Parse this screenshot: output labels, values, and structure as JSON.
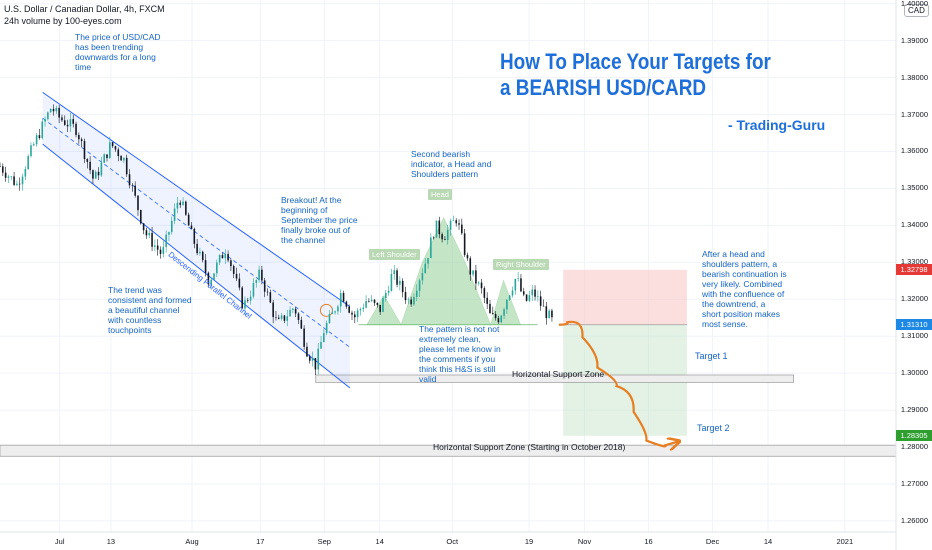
{
  "header": {
    "symbol_line": "U.S. Dollar / Canadian Dollar, 4h, FXCM",
    "volume_line": "24h volume by 100-eyes.com",
    "currency_badge": "CAD"
  },
  "title": {
    "line1": "How To Place Your Targets for",
    "line2": "a BEARISH USD/CARD",
    "author": "- Trading-Guru"
  },
  "annotations": {
    "trend_intro": [
      "The price of USD/CAD",
      "has been trending",
      "downwards for a long",
      "time"
    ],
    "channel_note": [
      "The trend was",
      "consistent and formed",
      "a beautiful channel",
      "with countless",
      "touchpoints"
    ],
    "breakout_note": [
      "Breakout! At the",
      "beginning of",
      "September the price",
      "finally broke out of",
      "the channel"
    ],
    "hs_note": [
      "Second bearish",
      "indicator, a Head and",
      "Shoulders pattern"
    ],
    "pattern_note": [
      "The pattern is not not",
      "extremely clean,",
      "please let me know in",
      "the comments if you",
      "think this H&S is still",
      "valid"
    ],
    "continuation_note": [
      "After a head and",
      "shoulders pattern, a",
      "bearish continuation is",
      "very likely. Combined",
      "with the confluence of",
      "the downtrend, a",
      "short position makes",
      "most sense."
    ],
    "channel_label": "Descending Parallel Channel",
    "left_shoulder": "Left Shoulder",
    "head": "Head",
    "right_shoulder": "Right Shoulder",
    "target1": "Target 1",
    "target2": "Target 2",
    "zone1": "Horizontal Support Zone",
    "zone2": "Horizontal Support Zone (Starting in October 2018)"
  },
  "colors": {
    "title": "#1e6fd9",
    "note": "#1565c0",
    "candle_up": "#26a69a",
    "candle_down": "#131722",
    "channel": "#2962ff",
    "hs_fill": "#81c784",
    "stop_zone": "#f8c5c5",
    "target_zone": "#c8e6c9",
    "projection": "#e67e22",
    "price_red": "#e53935",
    "price_blue": "#1e88e5",
    "price_green": "#2e9e2e"
  },
  "chart_data": {
    "type": "candlestick",
    "symbol": "USD/CAD",
    "timeframe": "4h",
    "y_ticks": [
      1.26,
      1.27,
      1.28,
      1.29,
      1.3,
      1.31,
      1.32,
      1.33,
      1.34,
      1.35,
      1.36,
      1.37,
      1.38,
      1.39,
      1.4
    ],
    "y_tick_labels": [
      "1.26000",
      "1.27000",
      "1.28000",
      "1.29000",
      "1.30000",
      "1.31000",
      "1.32000",
      "1.33000",
      "1.34000",
      "1.35000",
      "1.36000",
      "1.37000",
      "1.38000",
      "1.39000",
      "1.40000"
    ],
    "ylim": [
      1.257,
      1.401
    ],
    "x_ticks": [
      {
        "label": "Jul",
        "day": 0
      },
      {
        "label": "13",
        "day": 12
      },
      {
        "label": "Aug",
        "day": 31
      },
      {
        "label": "17",
        "day": 47
      },
      {
        "label": "Sep",
        "day": 62
      },
      {
        "label": "14",
        "day": 75
      },
      {
        "label": "Oct",
        "day": 92
      },
      {
        "label": "19",
        "day": 110
      },
      {
        "label": "Nov",
        "day": 123
      },
      {
        "label": "16",
        "day": 138
      },
      {
        "label": "Dec",
        "day": 153
      },
      {
        "label": "14",
        "day": 166
      },
      {
        "label": "2021",
        "day": 184
      }
    ],
    "xlim": [
      -14,
      196
    ],
    "last_day": 116,
    "price_path": [
      [
        -14,
        1.356
      ],
      [
        -10,
        1.351
      ],
      [
        -6,
        1.362
      ],
      [
        -2,
        1.372
      ],
      [
        0,
        1.369
      ],
      [
        4,
        1.366
      ],
      [
        8,
        1.352
      ],
      [
        12,
        1.362
      ],
      [
        15,
        1.358
      ],
      [
        20,
        1.338
      ],
      [
        24,
        1.332
      ],
      [
        28,
        1.348
      ],
      [
        31,
        1.337
      ],
      [
        35,
        1.325
      ],
      [
        39,
        1.334
      ],
      [
        43,
        1.318
      ],
      [
        47,
        1.327
      ],
      [
        51,
        1.313
      ],
      [
        55,
        1.318
      ],
      [
        58,
        1.306
      ],
      [
        60,
        1.302
      ],
      [
        62,
        1.312
      ],
      [
        64,
        1.316
      ],
      [
        66,
        1.322
      ],
      [
        69,
        1.315
      ],
      [
        72,
        1.32
      ],
      [
        75,
        1.317
      ],
      [
        78,
        1.327
      ],
      [
        82,
        1.319
      ],
      [
        86,
        1.331
      ],
      [
        88,
        1.34
      ],
      [
        90,
        1.337
      ],
      [
        93,
        1.342
      ],
      [
        96,
        1.328
      ],
      [
        99,
        1.322
      ],
      [
        101,
        1.315
      ],
      [
        103,
        1.315
      ],
      [
        105,
        1.321
      ],
      [
        107,
        1.326
      ],
      [
        109,
        1.319
      ],
      [
        111,
        1.322
      ],
      [
        113,
        1.318
      ],
      [
        116,
        1.3131
      ]
    ],
    "current_price": 1.3131,
    "price_labels": [
      {
        "value": 1.32798,
        "text": "1.32798",
        "color": "red"
      },
      {
        "value": 1.3131,
        "text": "1.31310",
        "color": "blue"
      },
      {
        "value": 1.28305,
        "text": "1.28305",
        "color": "green"
      }
    ],
    "channel": {
      "upper": [
        [
          -4,
          1.376
        ],
        [
          68,
          1.318
        ]
      ],
      "lower": [
        [
          -4,
          1.362
        ],
        [
          68,
          1.296
        ]
      ]
    },
    "head_and_shoulders": {
      "neckline": 1.3131,
      "points": [
        [
          72,
          1.3131
        ],
        [
          76,
          1.321
        ],
        [
          80,
          1.3131
        ],
        [
          85,
          1.33
        ],
        [
          90,
          1.342
        ],
        [
          95,
          1.33
        ],
        [
          101,
          1.3131
        ],
        [
          104,
          1.325
        ],
        [
          108,
          1.3131
        ]
      ]
    },
    "support_zones": [
      {
        "name": "Horizontal Support Zone",
        "from": 1.2975,
        "to": 1.2995,
        "x0": 60,
        "x1": 172
      },
      {
        "name": "Horizontal Support Zone (Starting in October 2018)",
        "from": 1.2775,
        "to": 1.2805,
        "x0": -14,
        "x1": 196
      }
    ],
    "short_position": {
      "entry": 1.3131,
      "stop": 1.32798,
      "target1": 1.2985,
      "target2": 1.28305,
      "x0": 118,
      "x1": 147
    },
    "projection": [
      [
        117,
        1.3131
      ],
      [
        121,
        1.3145
      ],
      [
        124,
        1.305
      ],
      [
        128,
        1.298
      ],
      [
        133,
        1.295
      ],
      [
        136,
        1.284
      ],
      [
        139,
        1.2795
      ],
      [
        145,
        1.2815
      ]
    ]
  }
}
